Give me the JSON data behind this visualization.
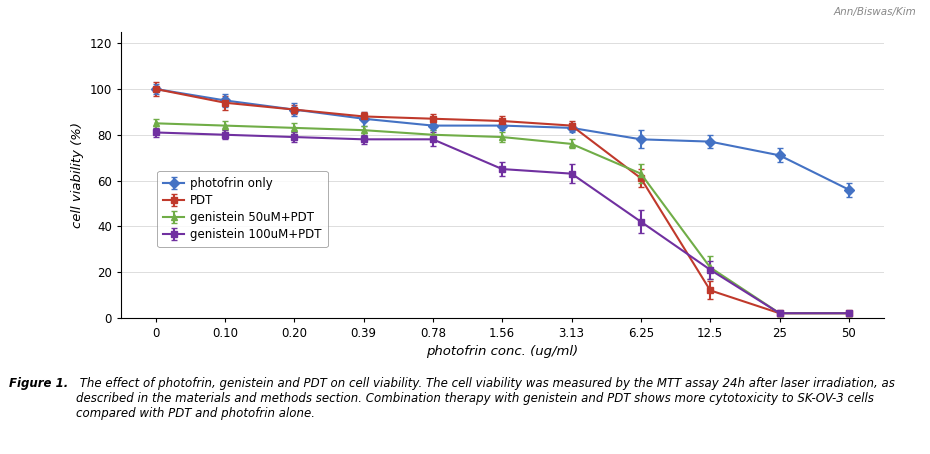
{
  "x_labels": [
    "0",
    "0.10",
    "0.20",
    "0.39",
    "0.78",
    "1.56",
    "3.13",
    "6.25",
    "12.5",
    "25",
    "50"
  ],
  "x_values": [
    0,
    1,
    2,
    3,
    4,
    5,
    6,
    7,
    8,
    9,
    10
  ],
  "photofrin_only": [
    100,
    95,
    91,
    87,
    84,
    84,
    83,
    78,
    77,
    71,
    56
  ],
  "photofrin_only_err": [
    2,
    3,
    3,
    3,
    2,
    2,
    2,
    4,
    3,
    3,
    3
  ],
  "PDT": [
    100,
    94,
    91,
    88,
    87,
    86,
    84,
    61,
    12,
    2,
    2
  ],
  "PDT_err": [
    3,
    3,
    2,
    2,
    2,
    2,
    2,
    4,
    4,
    1,
    1
  ],
  "genistein_50": [
    85,
    84,
    83,
    82,
    80,
    79,
    76,
    63,
    22,
    2,
    2
  ],
  "genistein_50_err": [
    2,
    2,
    2,
    2,
    2,
    2,
    2,
    4,
    5,
    1,
    1
  ],
  "genistein_100": [
    81,
    80,
    79,
    78,
    78,
    65,
    63,
    42,
    21,
    2,
    2
  ],
  "genistein_100_err": [
    2,
    2,
    2,
    2,
    3,
    3,
    4,
    5,
    4,
    1,
    1
  ],
  "colors": {
    "photofrin_only": "#4472C4",
    "PDT": "#C0392B",
    "genistein_50": "#70AD47",
    "genistein_100": "#7030A0"
  },
  "ylabel": "cell viability (%)",
  "xlabel": "photofrin conc. (ug/ml)",
  "ylim": [
    0,
    125
  ],
  "yticks": [
    0,
    20,
    40,
    60,
    80,
    100,
    120
  ],
  "watermark": "Ann/Biswas/Kim",
  "legend_labels": [
    "photofrin only",
    "PDT",
    "genistein 50uM+PDT",
    "genistein 100uM+PDT"
  ],
  "caption_bold": "Figure 1.",
  "caption_text": " The effect of photofrin, genistein and PDT on cell viability. The cell viability was measured by the MTT assay 24h after laser irradiation, as described in the materials and methods section. Combination therapy with genistein and PDT shows more cytotoxicity to SK-OV-3 cells compared with PDT and photofrin alone."
}
